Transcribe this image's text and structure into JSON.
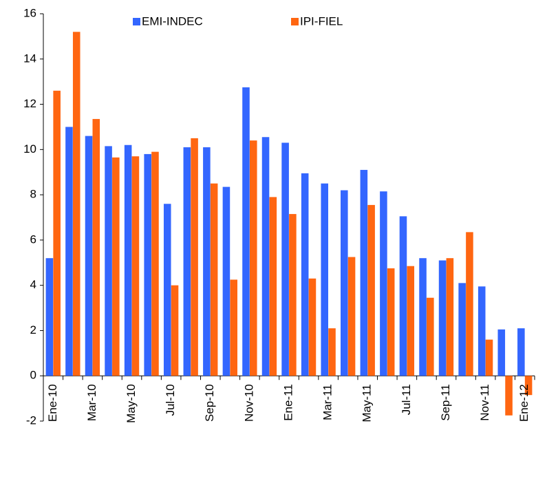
{
  "chart_data": {
    "type": "bar",
    "categories": [
      "Ene-10",
      null,
      "Mar-10",
      null,
      "May-10",
      null,
      "Jul-10",
      null,
      "Sep-10",
      null,
      "Nov-10",
      null,
      "Ene-11",
      null,
      "Mar-11",
      null,
      "May-11",
      null,
      "Jul-11",
      null,
      "Sep-11",
      null,
      "Nov-11",
      null,
      "Ene-12"
    ],
    "series": [
      {
        "name": "EMI-INDEC",
        "color": "#3366ff",
        "values": [
          5.2,
          11.0,
          10.6,
          10.15,
          10.2,
          9.8,
          7.6,
          10.1,
          10.1,
          8.35,
          12.75,
          10.55,
          10.3,
          8.95,
          8.5,
          8.2,
          9.1,
          8.15,
          7.05,
          5.2,
          5.1,
          4.1,
          3.95,
          2.05,
          2.1
        ]
      },
      {
        "name": "IPI-FIEL",
        "color": "#ff6611",
        "values": [
          12.6,
          15.2,
          11.35,
          9.65,
          9.7,
          9.9,
          4.0,
          10.5,
          8.5,
          4.25,
          10.4,
          7.9,
          7.15,
          4.3,
          2.1,
          5.25,
          7.55,
          4.75,
          4.85,
          3.45,
          5.2,
          6.35,
          1.6,
          -1.75,
          -0.85
        ]
      }
    ],
    "ylim": [
      -2,
      16
    ],
    "yticks": [
      -2,
      0,
      2,
      4,
      6,
      8,
      10,
      12,
      14,
      16
    ],
    "grid": false,
    "legend": "top"
  }
}
